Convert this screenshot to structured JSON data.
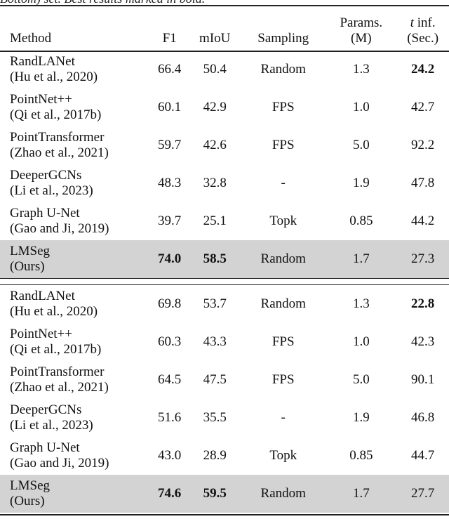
{
  "caption": "Bottom) set. Best results marked in bold.",
  "headers": [
    "Method",
    "F1",
    "mIoU",
    "Sampling",
    "Params.\n(M)",
    "t inf.\n(Sec.)"
  ],
  "groups": [
    [
      {
        "method": "RandLANet",
        "cite": "(Hu et al., 2020)",
        "f1": "66.4",
        "miou": "50.4",
        "sampling": "Random",
        "params": "1.3",
        "t": "24.2",
        "bold": [
          "t"
        ]
      },
      {
        "method": "PointNet++",
        "cite": "(Qi et al., 2017b)",
        "f1": "60.1",
        "miou": "42.9",
        "sampling": "FPS",
        "params": "1.0",
        "t": "42.7",
        "bold": []
      },
      {
        "method": "PointTransformer",
        "cite": "(Zhao et al., 2021)",
        "f1": "59.7",
        "miou": "42.6",
        "sampling": "FPS",
        "params": "5.0",
        "t": "92.2",
        "bold": []
      },
      {
        "method": "DeeperGCNs",
        "cite": "(Li et al., 2023)",
        "f1": "48.3",
        "miou": "32.8",
        "sampling": "-",
        "params": "1.9",
        "t": "47.8",
        "bold": []
      },
      {
        "method": "Graph U-Net",
        "cite": "(Gao and Ji, 2019)",
        "f1": "39.7",
        "miou": "25.1",
        "sampling": "Topk",
        "params": "0.85",
        "t": "44.2",
        "bold": []
      },
      {
        "method": "LMSeg",
        "cite": "(Ours)",
        "f1": "74.0",
        "miou": "58.5",
        "sampling": "Random",
        "params": "1.7",
        "t": "27.3",
        "bold": [
          "f1",
          "miou"
        ],
        "ours": true
      }
    ],
    [
      {
        "method": "RandLANet",
        "cite": "(Hu et al., 2020)",
        "f1": "69.8",
        "miou": "53.7",
        "sampling": "Random",
        "params": "1.3",
        "t": "22.8",
        "bold": [
          "t"
        ]
      },
      {
        "method": "PointNet++",
        "cite": "(Qi et al., 2017b)",
        "f1": "60.3",
        "miou": "43.3",
        "sampling": "FPS",
        "params": "1.0",
        "t": "42.3",
        "bold": []
      },
      {
        "method": "PointTransformer",
        "cite": "(Zhao et al., 2021)",
        "f1": "64.5",
        "miou": "47.5",
        "sampling": "FPS",
        "params": "5.0",
        "t": "90.1",
        "bold": []
      },
      {
        "method": "DeeperGCNs",
        "cite": "(Li et al., 2023)",
        "f1": "51.6",
        "miou": "35.5",
        "sampling": "-",
        "params": "1.9",
        "t": "46.8",
        "bold": []
      },
      {
        "method": "Graph U-Net",
        "cite": "(Gao and Ji, 2019)",
        "f1": "43.0",
        "miou": "28.9",
        "sampling": "Topk",
        "params": "0.85",
        "t": "44.7",
        "bold": []
      },
      {
        "method": "LMSeg",
        "cite": "(Ours)",
        "f1": "74.6",
        "miou": "59.5",
        "sampling": "Random",
        "params": "1.7",
        "t": "27.7",
        "bold": [
          "f1",
          "miou"
        ],
        "ours": true
      }
    ]
  ]
}
